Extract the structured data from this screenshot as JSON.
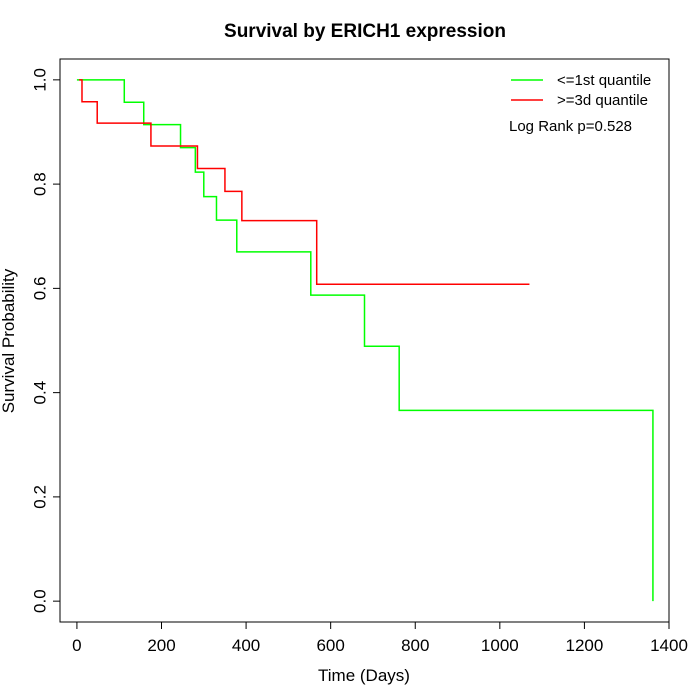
{
  "chart_data": {
    "type": "line",
    "title": "Survival by ERICH1 expression",
    "xlabel": "Time (Days)",
    "ylabel": "Survival Probability",
    "xlim": [
      -40,
      1400
    ],
    "ylim": [
      -0.04,
      1.04
    ],
    "xticks": [
      0,
      200,
      400,
      600,
      800,
      1000,
      1200,
      1400
    ],
    "xtick_labels": [
      "0",
      "200",
      "400",
      "600",
      "800",
      "1000",
      "1200",
      "1400"
    ],
    "yticks": [
      0.0,
      0.2,
      0.4,
      0.6,
      0.8,
      1.0
    ],
    "ytick_labels": [
      "0.0",
      "0.2",
      "0.4",
      "0.6",
      "0.8",
      "1.0"
    ],
    "grid": false,
    "legend_position": "top-right",
    "annotation": "Log Rank p=0.528",
    "series": [
      {
        "name": "<=1st quantile",
        "color": "#00ff00",
        "step": true,
        "x": [
          0,
          112,
          158,
          245,
          280,
          300,
          330,
          378,
          553,
          680,
          762,
          1362,
          1362
        ],
        "y": [
          1.0,
          0.957,
          0.914,
          0.87,
          0.823,
          0.776,
          0.731,
          0.67,
          0.587,
          0.489,
          0.366,
          0.366,
          0.0
        ]
      },
      {
        "name": ">=3d quantile",
        "color": "#ff0000",
        "step": true,
        "x": [
          5,
          12,
          48,
          175,
          285,
          350,
          390,
          567,
          1070
        ],
        "y": [
          1.0,
          0.958,
          0.917,
          0.873,
          0.83,
          0.786,
          0.73,
          0.608,
          0.608
        ]
      }
    ]
  }
}
